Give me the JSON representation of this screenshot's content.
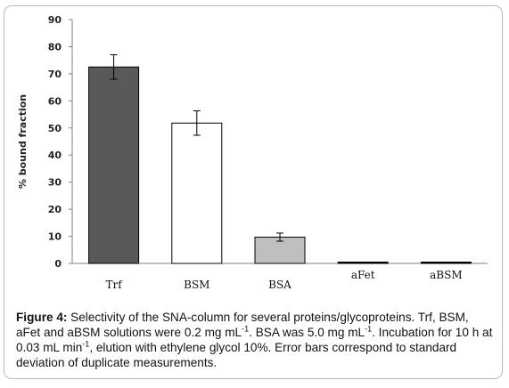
{
  "chart_data": {
    "type": "bar",
    "categories": [
      "Trf",
      "BSM",
      "BSA",
      "aFet",
      "aBSM"
    ],
    "values": [
      72.5,
      51.8,
      9.7,
      0.3,
      0.3
    ],
    "errors": [
      4.5,
      4.5,
      1.5,
      0.0,
      0.0
    ],
    "bar_colors": [
      "#595959",
      "#ffffff",
      "#bfbfbf",
      "#000000",
      "#000000"
    ],
    "ylabel": "% bound fraction",
    "xlabel": "",
    "ylim": [
      0,
      90
    ],
    "yticks": [
      0,
      10,
      20,
      30,
      40,
      50,
      60,
      70,
      80,
      90
    ],
    "grid": false,
    "error_bars": true
  },
  "caption": {
    "figure_label": "Figure 4:",
    "line1_text": " Selectivity of the SNA-column for several proteins/glycoproteins. Trf, BSM, aFet and aBSM solutions were 0.2 mg mL",
    "sup1": "-1",
    "line1_after": ". BSA was 5.0 mg mL",
    "sup2": "-1",
    "line2_text": ". Incubation for 10 h at 0.03 mL min",
    "sup3": "-1",
    "line2_after": ", elution with ethylene glycol 10%. Error bars correspond to standard deviation of duplicate measurements."
  }
}
